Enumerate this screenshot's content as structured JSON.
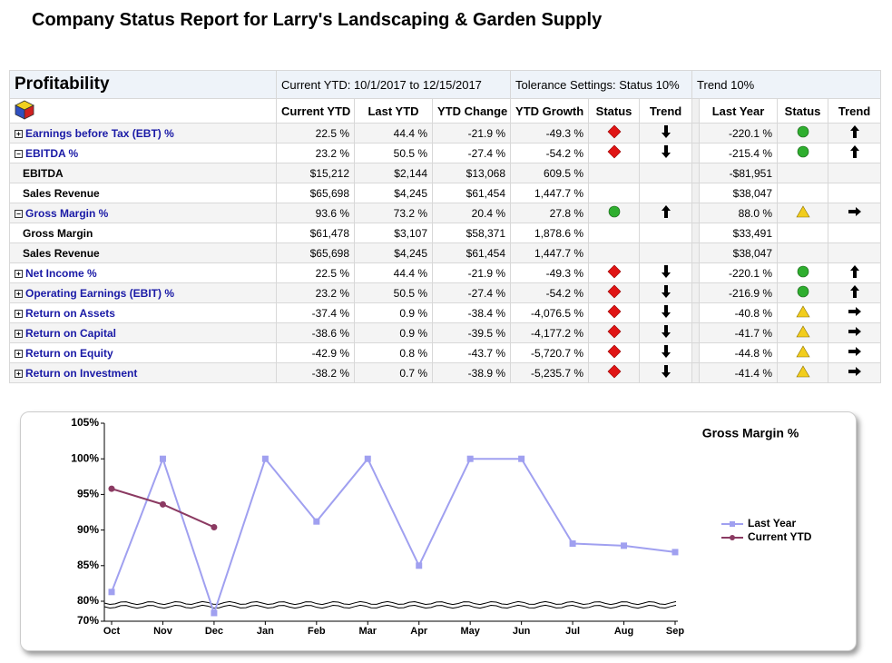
{
  "header": {
    "title": "Company Status Report for Larry's Landscaping & Garden Supply"
  },
  "table": {
    "section": "Profitability",
    "period": "Current YTD: 10/1/2017 to 12/15/2017",
    "tolerance": "Tolerance Settings: Status 10%",
    "trend_tolerance": "Trend 10%",
    "columns": [
      "Current YTD",
      "Last YTD",
      "YTD Change",
      "YTD Growth",
      "Status",
      "Trend",
      "Last Year",
      "Status",
      "Trend"
    ],
    "rows": [
      {
        "name": "Earnings before Tax (EBT) %",
        "group": true,
        "expanded": false,
        "values": [
          "22.5 %",
          "44.4 %",
          "-21.9 %",
          "-49.3 %"
        ],
        "status": "red",
        "trend": "down",
        "last_year": "-220.1 %",
        "ly_status": "green",
        "ly_trend": "up"
      },
      {
        "name": "EBITDA %",
        "group": true,
        "expanded": true,
        "values": [
          "23.2 %",
          "50.5 %",
          "-27.4 %",
          "-54.2 %"
        ],
        "status": "red",
        "trend": "down",
        "last_year": "-215.4 %",
        "ly_status": "green",
        "ly_trend": "up"
      },
      {
        "name": "EBITDA",
        "group": false,
        "values": [
          "$15,212",
          "$2,144",
          "$13,068",
          "609.5 %"
        ],
        "last_year": "-$81,951"
      },
      {
        "name": "Sales Revenue",
        "group": false,
        "values": [
          "$65,698",
          "$4,245",
          "$61,454",
          "1,447.7 %"
        ],
        "last_year": "$38,047"
      },
      {
        "name": "Gross Margin %",
        "group": true,
        "expanded": true,
        "values": [
          "93.6 %",
          "73.2 %",
          "20.4 %",
          "27.8 %"
        ],
        "status": "green",
        "trend": "up",
        "last_year": "88.0 %",
        "ly_status": "yellow",
        "ly_trend": "right"
      },
      {
        "name": "Gross Margin",
        "group": false,
        "values": [
          "$61,478",
          "$3,107",
          "$58,371",
          "1,878.6 %"
        ],
        "last_year": "$33,491"
      },
      {
        "name": "Sales Revenue",
        "group": false,
        "values": [
          "$65,698",
          "$4,245",
          "$61,454",
          "1,447.7 %"
        ],
        "last_year": "$38,047"
      },
      {
        "name": "Net Income %",
        "group": true,
        "expanded": false,
        "values": [
          "22.5 %",
          "44.4 %",
          "-21.9 %",
          "-49.3 %"
        ],
        "status": "red",
        "trend": "down",
        "last_year": "-220.1 %",
        "ly_status": "green",
        "ly_trend": "up"
      },
      {
        "name": "Operating Earnings (EBIT) %",
        "group": true,
        "expanded": false,
        "values": [
          "23.2 %",
          "50.5 %",
          "-27.4 %",
          "-54.2 %"
        ],
        "status": "red",
        "trend": "down",
        "last_year": "-216.9 %",
        "ly_status": "green",
        "ly_trend": "up"
      },
      {
        "name": "Return on Assets",
        "group": true,
        "expanded": false,
        "values": [
          "-37.4 %",
          "0.9 %",
          "-38.4 %",
          "-4,076.5 %"
        ],
        "status": "red",
        "trend": "down",
        "last_year": "-40.8 %",
        "ly_status": "yellow",
        "ly_trend": "right"
      },
      {
        "name": "Return on Capital",
        "group": true,
        "expanded": false,
        "values": [
          "-38.6 %",
          "0.9 %",
          "-39.5 %",
          "-4,177.2 %"
        ],
        "status": "red",
        "trend": "down",
        "last_year": "-41.7 %",
        "ly_status": "yellow",
        "ly_trend": "right"
      },
      {
        "name": "Return on Equity",
        "group": true,
        "expanded": false,
        "values": [
          "-42.9 %",
          "0.8 %",
          "-43.7 %",
          "-5,720.7 %"
        ],
        "status": "red",
        "trend": "down",
        "last_year": "-44.8 %",
        "ly_status": "yellow",
        "ly_trend": "right"
      },
      {
        "name": "Return on Investment",
        "group": true,
        "expanded": false,
        "values": [
          "-38.2 %",
          "0.7 %",
          "-38.9 %",
          "-5,235.7 %"
        ],
        "status": "red",
        "trend": "down",
        "last_year": "-41.4 %",
        "ly_status": "yellow",
        "ly_trend": "right"
      }
    ]
  },
  "chart_data": {
    "type": "line",
    "title": "Gross Margin %",
    "categories": [
      "Oct",
      "Nov",
      "Dec",
      "Jan",
      "Feb",
      "Mar",
      "Apr",
      "May",
      "Jun",
      "Jul",
      "Aug",
      "Sep"
    ],
    "series": [
      {
        "name": "Last Year",
        "color": "#a0a0f0",
        "marker": "square",
        "values": [
          81.3,
          100,
          74.1,
          100,
          91.2,
          100,
          85.0,
          100,
          100,
          88.1,
          87.8,
          86.9
        ]
      },
      {
        "name": "Current YTD",
        "color": "#8b3a62",
        "marker": "circle",
        "values": [
          95.8,
          93.6,
          90.4,
          null,
          null,
          null,
          null,
          null,
          null,
          null,
          null,
          null
        ]
      }
    ],
    "ylim": [
      70,
      105
    ],
    "ybreak": 80,
    "yticks": [
      {
        "value": 70,
        "label": "70%"
      },
      {
        "value": 80,
        "label": "80%"
      },
      {
        "value": 85,
        "label": "85%"
      },
      {
        "value": 90,
        "label": "90%"
      },
      {
        "value": 95,
        "label": "95%"
      },
      {
        "value": 100,
        "label": "100%"
      },
      {
        "value": 105,
        "label": "105%"
      }
    ],
    "legend": "right"
  }
}
